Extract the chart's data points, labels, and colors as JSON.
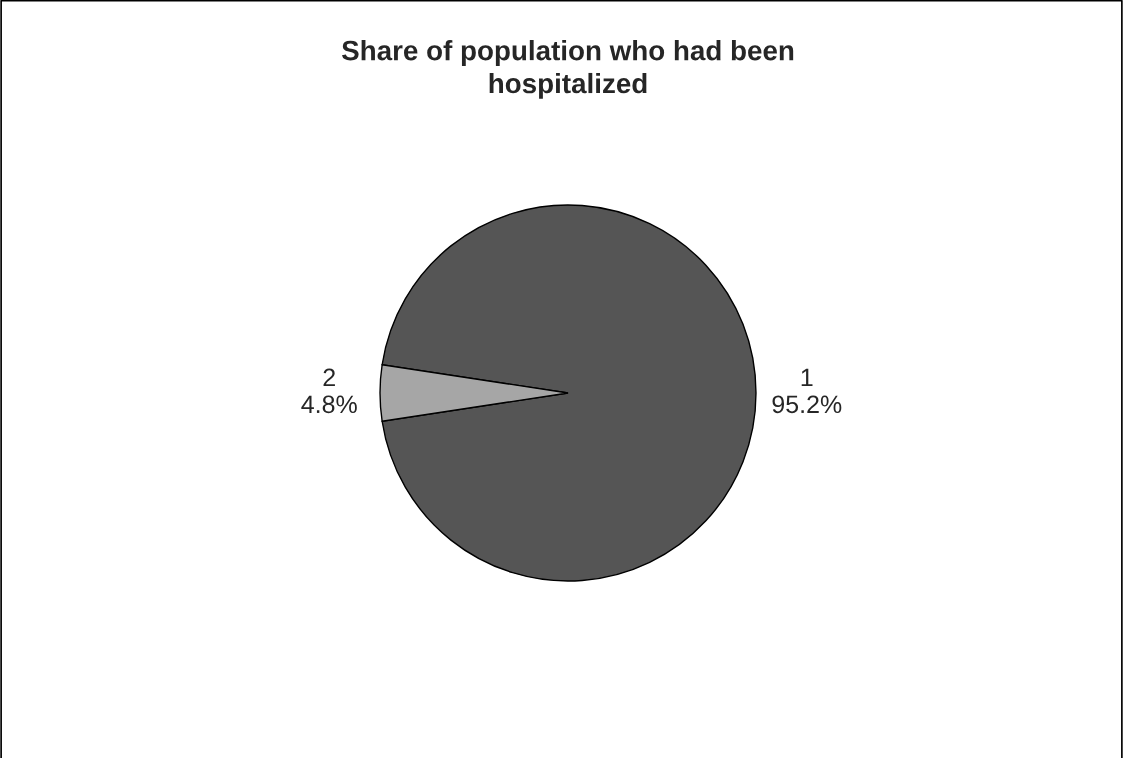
{
  "chart_data": {
    "type": "pie",
    "title": "Share of population who had been\nhospitalized",
    "categories": [
      "1",
      "2"
    ],
    "values": [
      95.2,
      4.8
    ],
    "colors": [
      "#555555",
      "#a6a6a6"
    ],
    "value_labels": [
      "95.2%",
      "4.8%"
    ],
    "legend": false
  }
}
